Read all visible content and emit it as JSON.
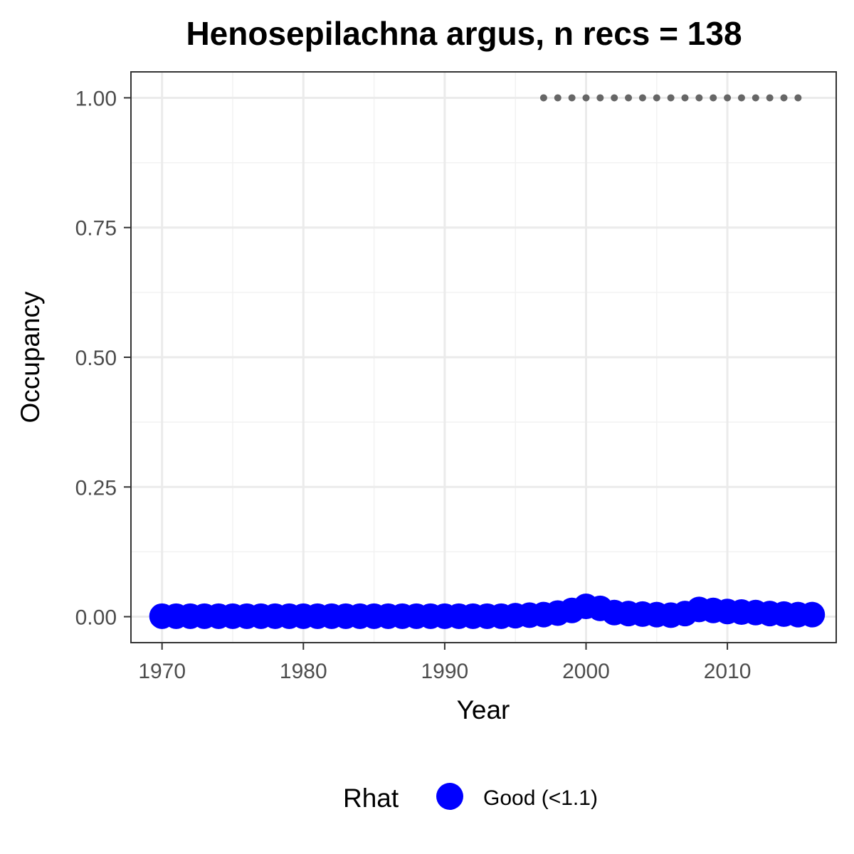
{
  "chart_data": {
    "type": "line",
    "title": "Henosepilachna argus, n recs = 138",
    "xlabel": "Year",
    "ylabel": "Occupancy",
    "xlim": [
      1967.8,
      2017.7
    ],
    "ylim": [
      -0.05,
      1.05
    ],
    "x_ticks": [
      1970,
      1980,
      1990,
      2000,
      2010
    ],
    "x_tick_labels": [
      "1970",
      "1980",
      "1990",
      "2000",
      "2010"
    ],
    "y_ticks": [
      0,
      0.25,
      0.5,
      0.75,
      1.0
    ],
    "y_tick_labels": [
      "0.00",
      "0.25",
      "0.50",
      "0.75",
      "1.00"
    ],
    "grid": true,
    "series": [
      {
        "name": "Good (<1.1)",
        "style": "points-line",
        "color": "#0000ff",
        "x": [
          1970,
          1971,
          1972,
          1973,
          1974,
          1975,
          1976,
          1977,
          1978,
          1979,
          1980,
          1981,
          1982,
          1983,
          1984,
          1985,
          1986,
          1987,
          1988,
          1989,
          1990,
          1991,
          1992,
          1993,
          1994,
          1995,
          1996,
          1997,
          1998,
          1999,
          2000,
          2001,
          2002,
          2003,
          2004,
          2005,
          2006,
          2007,
          2008,
          2009,
          2010,
          2011,
          2012,
          2013,
          2014,
          2015,
          2016
        ],
        "y": [
          0.001,
          0.001,
          0.001,
          0.001,
          0.001,
          0.001,
          0.001,
          0.001,
          0.001,
          0.001,
          0.001,
          0.001,
          0.001,
          0.001,
          0.001,
          0.001,
          0.001,
          0.001,
          0.001,
          0.001,
          0.001,
          0.001,
          0.001,
          0.001,
          0.001,
          0.002,
          0.003,
          0.004,
          0.007,
          0.012,
          0.02,
          0.016,
          0.008,
          0.006,
          0.005,
          0.004,
          0.003,
          0.006,
          0.014,
          0.012,
          0.01,
          0.009,
          0.008,
          0.006,
          0.005,
          0.004,
          0.004
        ]
      },
      {
        "style": "dotted",
        "color": "#666666",
        "x": [
          1997,
          1998,
          1999,
          2000,
          2001,
          2002,
          2003,
          2004,
          2005,
          2006,
          2007,
          2008,
          2009,
          2010,
          2011,
          2012,
          2013,
          2014,
          2015
        ],
        "y": [
          1,
          1,
          1,
          1,
          1,
          1,
          1,
          1,
          1,
          1,
          1,
          1,
          1,
          1,
          1,
          1,
          1,
          1,
          1
        ]
      }
    ],
    "legend": {
      "title": "Rhat",
      "placement": "bottom",
      "entries": [
        {
          "label": "Good (<1.1)",
          "color": "#0000ff"
        }
      ]
    }
  }
}
